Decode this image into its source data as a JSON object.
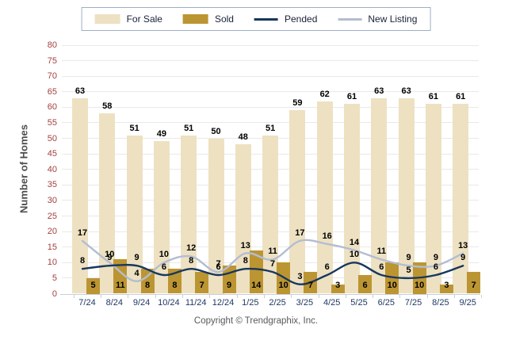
{
  "chart_data": {
    "type": "bar+line",
    "title": "",
    "categories": [
      "7/24",
      "8/24",
      "9/24",
      "10/24",
      "11/24",
      "12/24",
      "1/25",
      "2/25",
      "3/25",
      "4/25",
      "5/25",
      "6/25",
      "7/25",
      "8/25",
      "9/25"
    ],
    "series": [
      {
        "name": "For Sale",
        "type": "bar",
        "color": "#EDE1C2",
        "values": [
          63,
          58,
          51,
          49,
          51,
          50,
          48,
          51,
          59,
          62,
          61,
          63,
          63,
          61,
          61
        ]
      },
      {
        "name": "Sold",
        "type": "bar",
        "color": "#BC9533",
        "values": [
          5,
          11,
          8,
          8,
          7,
          9,
          14,
          10,
          7,
          3,
          6,
          10,
          10,
          3,
          7
        ]
      },
      {
        "name": "Pended",
        "type": "line",
        "color": "#17375D",
        "values": [
          8,
          9,
          9,
          6,
          8,
          6,
          8,
          7,
          3,
          6,
          10,
          6,
          5,
          6,
          9
        ]
      },
      {
        "name": "New Listing",
        "type": "line",
        "color": "#B3BDD1",
        "values": [
          17,
          10,
          4,
          10,
          12,
          7,
          13,
          11,
          17,
          16,
          14,
          11,
          9,
          9,
          13
        ]
      }
    ],
    "xlabel": "",
    "ylabel": "Number of Homes",
    "ylim": [
      0,
      80
    ],
    "ytick_step": 5,
    "grid": true,
    "legend_position": "top"
  },
  "colors": {
    "y_tick_text": "#A3413F",
    "x_tick_text": "#1F3864",
    "value_label_text": "#000000",
    "gridline": "#E9E9E9",
    "legend_border": "#9FAEC6",
    "background": "#FFFFFF"
  },
  "footer": {
    "text": "Copyright © Trendgraphix, Inc."
  }
}
